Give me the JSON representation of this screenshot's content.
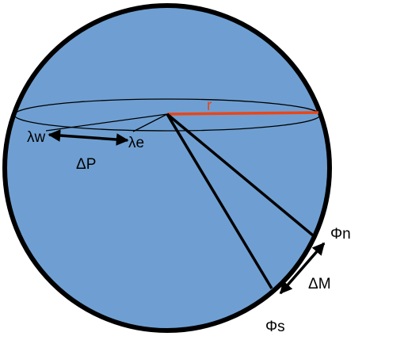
{
  "colors": {
    "sphere_fill": "#6f9fd2",
    "outline": "#000000",
    "radius": "#e8461a",
    "radius_label": "#e8461a",
    "text": "#000000"
  },
  "labels": {
    "radius": "r",
    "lambda_w": "λw",
    "lambda_e": "λe",
    "delta_p": "ΔP",
    "phi_n": "Φn",
    "phi_s": "Φs",
    "delta_m": "ΔM"
  }
}
